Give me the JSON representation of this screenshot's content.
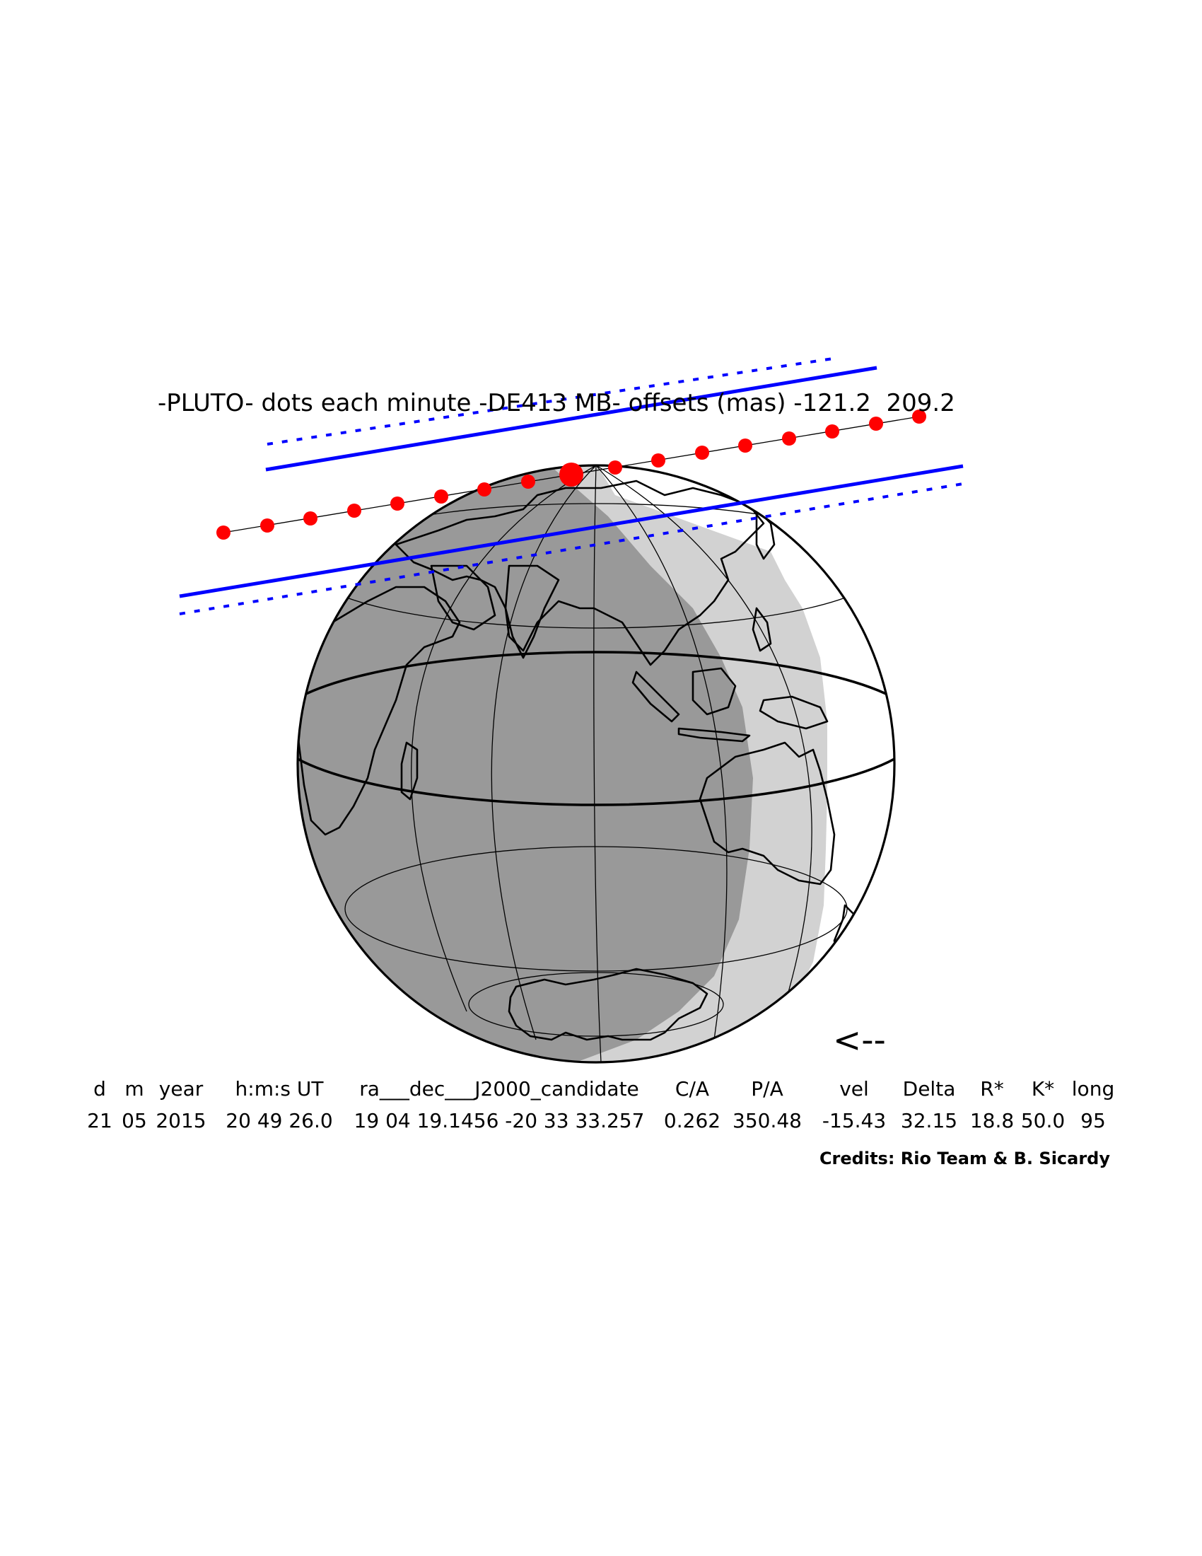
{
  "plot": {
    "title": "-PLUTO- dots each minute -DE413 MB- offsets (mas) -121.2  209.2",
    "direction_arrow": "<--",
    "colors": {
      "night": "#999999",
      "twilight": "#d2d2d2",
      "day": "#ffffff",
      "coastline": "#000000",
      "shadow_path": "#0000ff",
      "chord_dots": "#ff0000"
    }
  },
  "table": {
    "headers": [
      "d",
      "m",
      "year",
      "h:m:s UT",
      "ra___dec___J2000_candidate",
      "C/A",
      "P/A",
      "vel",
      "Delta",
      "R*",
      "K*",
      "long"
    ],
    "values": [
      "21",
      "05",
      "2015",
      "20 49 26.0",
      "19 04 19.1456 -20 33 33.257",
      "0.262",
      "350.48",
      "-15.43",
      "32.15",
      "18.8",
      "50.0",
      "95"
    ]
  },
  "credits": "Credits: Rio Team & B. Sicardy"
}
